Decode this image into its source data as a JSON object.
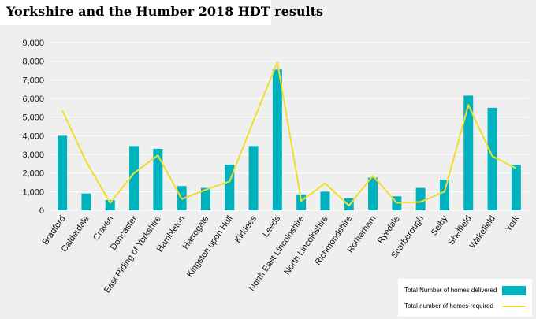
{
  "page": {
    "title": "Yorkshire and the Humber 2018 HDT results"
  },
  "colors": {
    "bar": "#00b2bd",
    "line": "#f2dd2d",
    "gridline": "#ffffff",
    "background": "#efefef"
  },
  "legend": {
    "position": "bottom-right",
    "items": [
      {
        "label": "Total Number of homes delivered",
        "type": "bar"
      },
      {
        "label": "Total number of homes required",
        "type": "line"
      }
    ]
  },
  "chart_data": {
    "type": "bar",
    "categories": [
      "Bradford",
      "Calderdale",
      "Craven",
      "Doncaster",
      "East Riding of Yorkshire",
      "Hambleton",
      "Harrogate",
      "Kingston upon Hull",
      "Kirklees",
      "Leeds",
      "North East Lincolnshire",
      "North Lincolnshire",
      "Richmondshire",
      "Rotherham",
      "Ryedale",
      "Scarborough",
      "Selby",
      "Sheffield",
      "Wakefield",
      "York"
    ],
    "series": [
      {
        "name": "Total Number of homes delivered",
        "type": "bar",
        "values": [
          4000,
          900,
          550,
          3450,
          3300,
          1300,
          1200,
          2450,
          3450,
          7550,
          850,
          1000,
          650,
          1750,
          750,
          1200,
          1650,
          6150,
          5500,
          2450
        ]
      },
      {
        "name": "Total number of homes required",
        "type": "line",
        "values": [
          5350,
          2600,
          400,
          2000,
          2950,
          600,
          1100,
          1550,
          4800,
          7950,
          500,
          1450,
          250,
          1850,
          400,
          450,
          1000,
          5650,
          2900,
          2250
        ]
      }
    ],
    "yticks": [
      "0",
      "1,000",
      "2,000",
      "3,000",
      "4,000",
      "5,000",
      "6,000",
      "7,000",
      "8,000",
      "9,000"
    ],
    "ylim": [
      0,
      9000
    ],
    "grid": true,
    "xlabel": "",
    "ylabel": ""
  }
}
